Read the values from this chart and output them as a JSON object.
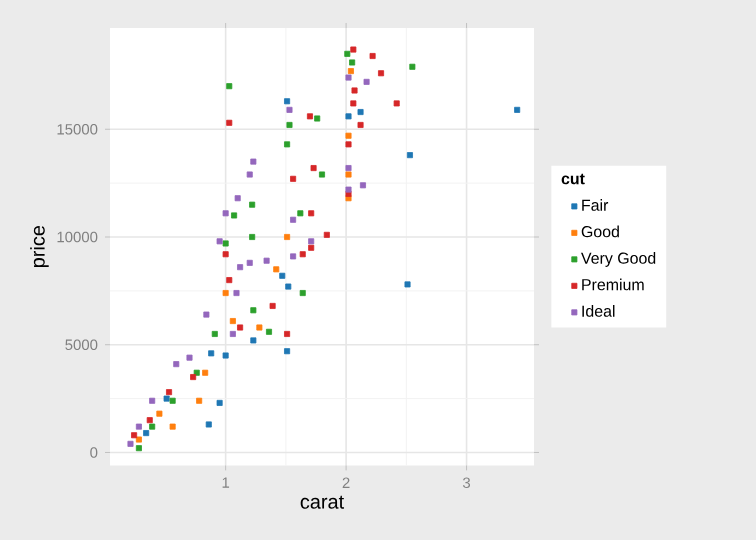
{
  "chart_data": {
    "type": "scatter",
    "xlabel": "carat",
    "ylabel": "price",
    "legend_title": "cut",
    "xlim": [
      0.04,
      3.56
    ],
    "ylim": [
      -600,
      19700
    ],
    "xticks": [
      1,
      2,
      3
    ],
    "yticks": [
      0,
      5000,
      10000,
      15000
    ],
    "grid": true,
    "legend": "right",
    "marker": "square",
    "series": [
      {
        "name": "Fair",
        "color": "#1f77b4",
        "x": [
          1.51,
          1.51,
          1.47,
          1.52,
          1.0,
          0.95,
          0.86,
          0.51,
          2.12,
          3.42,
          2.53,
          2.51,
          2.02,
          0.88,
          0.34,
          1.23
        ],
        "values": [
          16300,
          4700,
          8200,
          7700,
          4500,
          2300,
          1300,
          2500,
          15800,
          15900,
          13800,
          7800,
          15600,
          4600,
          900,
          5200
        ]
      },
      {
        "name": "Good",
        "color": "#ff7f0e",
        "x": [
          1.0,
          1.42,
          1.51,
          0.78,
          0.56,
          0.28,
          1.06,
          2.02,
          2.02,
          2.04,
          2.02,
          0.45,
          0.83,
          1.28
        ],
        "values": [
          7400,
          8500,
          10000,
          2400,
          1200,
          600,
          6100,
          11800,
          12900,
          17700,
          14700,
          1800,
          3700,
          5800
        ]
      },
      {
        "name": "Very Good",
        "color": "#2ca02c",
        "x": [
          1.03,
          1.53,
          1.51,
          1.22,
          1.07,
          1.22,
          1.62,
          1.8,
          1.64,
          0.91,
          1.23,
          1.36,
          0.76,
          0.56,
          0.39,
          0.28,
          1.0,
          2.01,
          2.55,
          2.05,
          1.76
        ],
        "values": [
          17000,
          15200,
          14300,
          11500,
          11000,
          10000,
          11100,
          12900,
          7400,
          5500,
          6600,
          5600,
          3700,
          2400,
          1200,
          200,
          9700,
          18500,
          17900,
          18100,
          15500
        ]
      },
      {
        "name": "Premium",
        "color": "#d62728",
        "x": [
          1.03,
          1.56,
          1.73,
          1.71,
          1.84,
          1.64,
          1.0,
          1.39,
          1.12,
          1.51,
          0.73,
          0.53,
          0.37,
          0.24,
          1.03,
          2.06,
          2.06,
          2.22,
          2.29,
          2.07,
          2.42,
          2.12,
          2.02,
          2.02,
          1.71,
          1.7
        ],
        "values": [
          15300,
          12700,
          13200,
          11100,
          10100,
          9200,
          9200,
          6800,
          5800,
          5500,
          3500,
          2800,
          1500,
          800,
          8000,
          16200,
          18700,
          18400,
          17600,
          16800,
          16200,
          15200,
          14300,
          12000,
          9500,
          15600
        ]
      },
      {
        "name": "Ideal",
        "color": "#9467bd",
        "x": [
          1.23,
          1.2,
          1.1,
          1.0,
          0.95,
          1.2,
          1.34,
          1.12,
          1.09,
          1.06,
          0.84,
          0.59,
          0.7,
          0.39,
          0.28,
          0.21,
          1.53,
          1.56,
          1.56,
          2.17,
          2.14,
          2.02,
          2.02,
          2.02,
          1.71
        ],
        "values": [
          13500,
          12900,
          11800,
          11100,
          9800,
          8800,
          8900,
          8600,
          7400,
          5500,
          6400,
          4100,
          4400,
          2400,
          1200,
          400,
          15900,
          10800,
          9100,
          17200,
          12400,
          17400,
          13200,
          12200,
          9800
        ]
      }
    ]
  }
}
